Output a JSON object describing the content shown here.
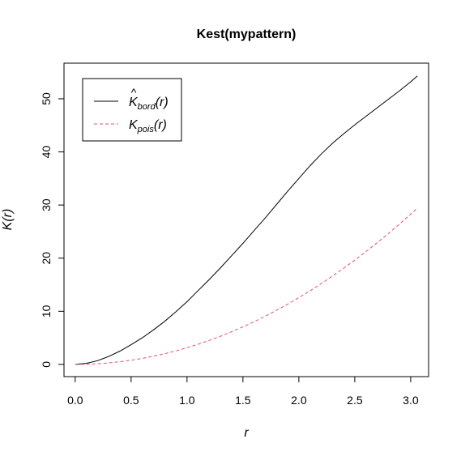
{
  "chart_data": {
    "type": "line",
    "title": "Kest(mypattern)",
    "xlabel": "r",
    "ylabel": "K(r)",
    "xlim": [
      -0.1,
      3.16
    ],
    "ylim": [
      -2.3,
      56.7
    ],
    "xticks": [
      "0.0",
      "0.5",
      "1.0",
      "1.5",
      "2.0",
      "2.5",
      "3.0"
    ],
    "xtick_values": [
      0.0,
      0.5,
      1.0,
      1.5,
      2.0,
      2.5,
      3.0
    ],
    "yticks": [
      "0",
      "10",
      "20",
      "30",
      "40",
      "50"
    ],
    "ytick_values": [
      0,
      10,
      20,
      30,
      40,
      50
    ],
    "grid": false,
    "legend_position": "top-left",
    "series": [
      {
        "name": "K̂bord(r)",
        "legend_base": "K",
        "legend_sub": "bord",
        "legend_arg": "(r)",
        "hat": true,
        "color": "#000000",
        "dash": "solid",
        "x": [
          0.0,
          0.1,
          0.2,
          0.3,
          0.4,
          0.5,
          0.6,
          0.7,
          0.8,
          0.9,
          1.0,
          1.1,
          1.2,
          1.3,
          1.4,
          1.5,
          1.6,
          1.7,
          1.8,
          1.9,
          2.0,
          2.1,
          2.2,
          2.3,
          2.4,
          2.5,
          2.6,
          2.7,
          2.8,
          2.9,
          3.0,
          3.06
        ],
        "y": [
          0.0,
          0.2,
          0.7,
          1.5,
          2.5,
          3.7,
          5.0,
          6.5,
          8.1,
          9.9,
          11.8,
          13.9,
          16.0,
          18.2,
          20.5,
          22.8,
          25.2,
          27.6,
          30.1,
          32.6,
          35.0,
          37.4,
          39.6,
          41.6,
          43.4,
          45.1,
          46.7,
          48.3,
          49.9,
          51.5,
          53.2,
          54.3
        ]
      },
      {
        "name": "Kpois(r)",
        "legend_base": "K",
        "legend_sub": "pois",
        "legend_arg": "(r)",
        "hat": false,
        "color": "#DF536B",
        "dash": "dashed",
        "x": [
          0.0,
          0.1,
          0.2,
          0.3,
          0.4,
          0.5,
          0.6,
          0.7,
          0.8,
          0.9,
          1.0,
          1.1,
          1.2,
          1.3,
          1.4,
          1.5,
          1.6,
          1.7,
          1.8,
          1.9,
          2.0,
          2.1,
          2.2,
          2.3,
          2.4,
          2.5,
          2.6,
          2.7,
          2.8,
          2.9,
          3.0,
          3.06
        ],
        "y": [
          0.0,
          0.03,
          0.13,
          0.28,
          0.5,
          0.79,
          1.13,
          1.54,
          2.01,
          2.54,
          3.14,
          3.8,
          4.52,
          5.31,
          6.16,
          7.07,
          8.04,
          9.08,
          10.18,
          11.34,
          12.57,
          13.85,
          15.21,
          16.62,
          18.1,
          19.63,
          21.24,
          22.9,
          24.63,
          26.42,
          28.27,
          29.42
        ]
      }
    ]
  }
}
